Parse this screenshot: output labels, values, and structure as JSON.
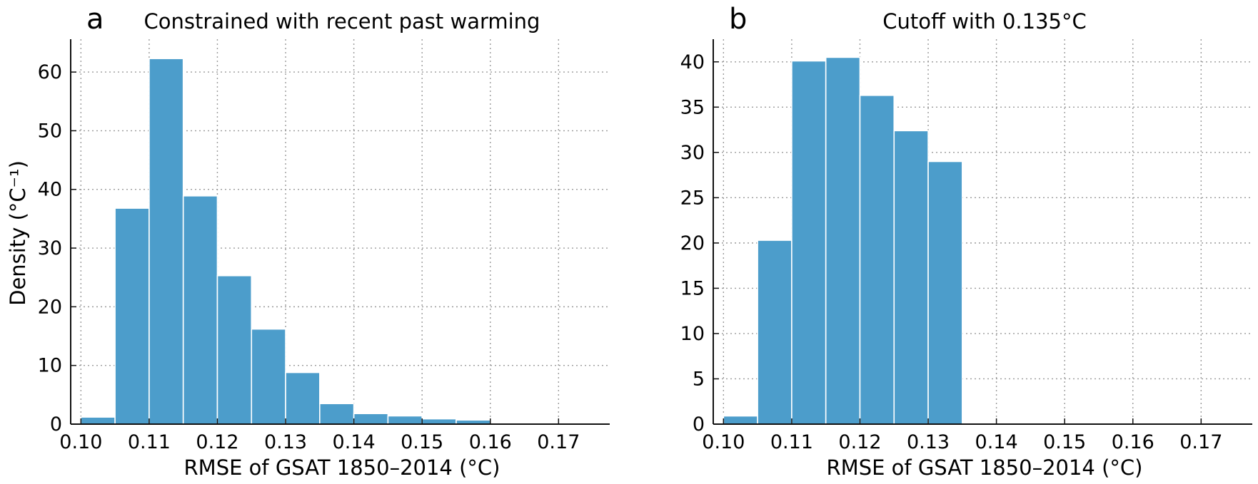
{
  "charts": {
    "a": {
      "panel_label": "a",
      "title": "Constrained with recent past warming",
      "xlabel": "RMSE of GSAT 1850–2014 (°C)",
      "ylabel": "Density (°C⁻¹)",
      "xticks": [
        "0.10",
        "0.11",
        "0.12",
        "0.13",
        "0.14",
        "0.15",
        "0.16",
        "0.17"
      ],
      "yticks": [
        "0",
        "10",
        "20",
        "30",
        "40",
        "50",
        "60"
      ]
    },
    "b": {
      "panel_label": "b",
      "title": "Cutoff with 0.135°C",
      "xlabel": "RMSE of GSAT 1850–2014 (°C)",
      "ylabel": "",
      "xticks": [
        "0.10",
        "0.11",
        "0.12",
        "0.13",
        "0.14",
        "0.15",
        "0.16",
        "0.17"
      ],
      "yticks": [
        "0",
        "5",
        "10",
        "15",
        "20",
        "25",
        "30",
        "35",
        "40"
      ]
    }
  },
  "chart_data": [
    {
      "type": "bar",
      "panel": "a",
      "title": "Constrained with recent past warming",
      "xlabel": "RMSE of GSAT 1850–2014 (°C)",
      "ylabel": "Density (°C⁻¹)",
      "bin_edges": [
        0.1,
        0.105,
        0.11,
        0.115,
        0.12,
        0.125,
        0.13,
        0.135,
        0.14,
        0.145,
        0.15,
        0.155,
        0.16,
        0.165
      ],
      "values": [
        1.2,
        36.8,
        62.3,
        38.9,
        25.3,
        16.2,
        8.8,
        3.5,
        1.8,
        1.4,
        0.9,
        0.7,
        0.2
      ],
      "xlim": [
        0.0985,
        0.1775
      ],
      "ylim": [
        0,
        65.6
      ],
      "grid": true,
      "color": "#4c9dcb"
    },
    {
      "type": "bar",
      "panel": "b",
      "title": "Cutoff with 0.135°C",
      "xlabel": "RMSE of GSAT 1850–2014 (°C)",
      "ylabel": "",
      "bin_edges": [
        0.1,
        0.105,
        0.11,
        0.115,
        0.12,
        0.125,
        0.13,
        0.135
      ],
      "values": [
        0.9,
        20.3,
        40.1,
        40.5,
        36.3,
        32.4,
        29.0
      ],
      "xlim": [
        0.0985,
        0.1775
      ],
      "ylim": [
        0,
        42.5
      ],
      "grid": true,
      "color": "#4c9dcb"
    }
  ]
}
